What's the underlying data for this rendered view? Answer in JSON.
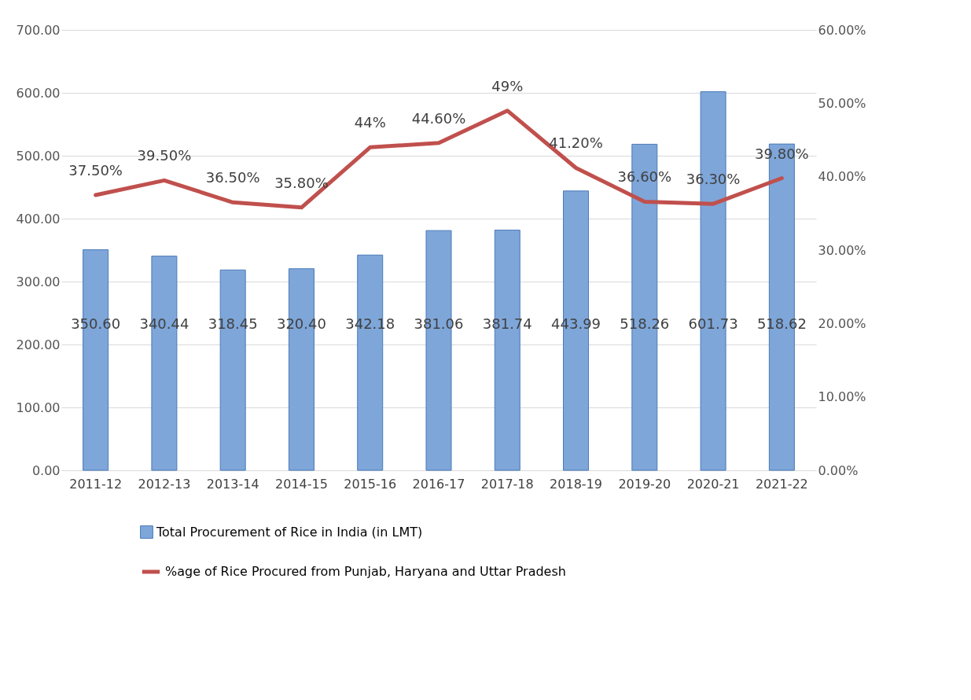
{
  "chart_data": {
    "type": "bar",
    "categories": [
      "2011-12",
      "2012-13",
      "2013-14",
      "2014-15",
      "2015-16",
      "2016-17",
      "2017-18",
      "2018-19",
      "2019-20",
      "2020-21",
      "2021-22"
    ],
    "series": [
      {
        "name": "Total Procurement of Rice in India (in LMT)",
        "color": "#7ea6d9",
        "values": [
          350.6,
          340.44,
          318.45,
          320.4,
          342.18,
          381.06,
          381.74,
          443.99,
          518.26,
          601.73,
          518.62
        ],
        "value_labels": [
          "350.60",
          "340.44",
          "318.45",
          "320.40",
          "342.18",
          "381.06",
          "381.74",
          "443.99",
          "518.26",
          "601.73",
          "518.62"
        ]
      },
      {
        "name": "%age of Rice Procured from Punjab, Haryana and Uttar Pradesh",
        "type": "line",
        "axis": "y2",
        "color": "#c0504d",
        "values": [
          37.5,
          39.5,
          36.5,
          35.8,
          44,
          44.6,
          49,
          41.2,
          36.6,
          36.3,
          39.8
        ],
        "value_labels": [
          "37.50%",
          "39.50%",
          "36.50%",
          "35.80%",
          "44%",
          "44.60%",
          "49%",
          "41.20%",
          "36.60%",
          "36.30%",
          "39.80%"
        ]
      }
    ],
    "ylim": [
      0,
      700
    ],
    "yticks": [
      {
        "value": 0,
        "label": "0.00"
      },
      {
        "value": 100,
        "label": "100.00"
      },
      {
        "value": 200,
        "label": "200.00"
      },
      {
        "value": 300,
        "label": "300.00"
      },
      {
        "value": 400,
        "label": "400.00"
      },
      {
        "value": 500,
        "label": "500.00"
      },
      {
        "value": 600,
        "label": "600.00"
      },
      {
        "value": 700,
        "label": "700.00"
      }
    ],
    "y2lim": [
      0,
      60
    ],
    "y2ticks": [
      {
        "value": 0,
        "label": "0.00%"
      },
      {
        "value": 10,
        "label": "10.00%"
      },
      {
        "value": 20,
        "label": "20.00%"
      },
      {
        "value": 30,
        "label": "30.00%"
      },
      {
        "value": 40,
        "label": "40.00%"
      },
      {
        "value": 50,
        "label": "50.00%"
      },
      {
        "value": 60,
        "label": "60.00%"
      }
    ],
    "grid": "y",
    "legend": "bottom",
    "marker": "none",
    "line_style": "solid"
  }
}
